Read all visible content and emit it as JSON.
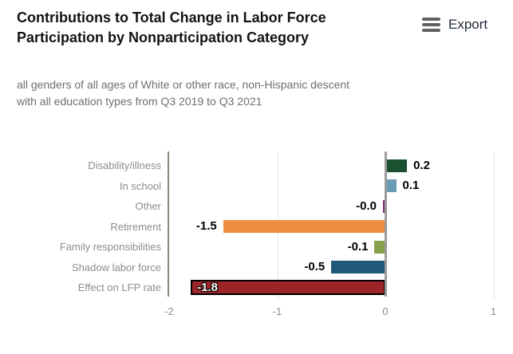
{
  "header": {
    "export": {
      "label": "Export"
    }
  },
  "chart_data": {
    "type": "bar",
    "orientation": "horizontal",
    "title": "Contributions to Total Change in Labor Force Participation by Nonparticipation Category",
    "subtitle": "all genders of all ages of White or other race, non-Hispanic descent with all education types from Q3 2019 to Q3 2021",
    "categories": [
      "Disability/illness",
      "In school",
      "Other",
      "Retirement",
      "Family responsibilities",
      "Shadow labor force",
      "Effect on LFP rate"
    ],
    "values": [
      0.2,
      0.1,
      -0.0,
      -1.5,
      -0.1,
      -0.5,
      -1.8
    ],
    "value_labels": [
      "0.2",
      "0.1",
      "-0.0",
      "-1.5",
      "-0.1",
      "-0.5",
      "-1.8"
    ],
    "bar_colors": [
      "#1b5130",
      "#6a9cb8",
      "#7a3077",
      "#f08c3d",
      "#87a14a",
      "#20587a",
      "#9d2428"
    ],
    "highlight_bar": {
      "index": 6,
      "border_color": "#000000",
      "label_inside": true,
      "label_color": "#ffffff"
    },
    "xlabel": "",
    "ylabel": "",
    "xlim": [
      -2,
      1.15
    ],
    "xticks": [
      -2,
      -1,
      0,
      1
    ],
    "xtick_labels": [
      "-2",
      "-1",
      "0",
      "1"
    ],
    "zero_line": true,
    "grid": "vertical",
    "legend": "none",
    "colors": {
      "zero_line": "#9b9b9b",
      "axis_line": "#8d8477",
      "gridline": "#e7e7e7",
      "axis_text": "#8c8c8c",
      "value_label": "#000000",
      "title_text": "#131313",
      "subtitle_text": "#6f6f6f"
    }
  }
}
